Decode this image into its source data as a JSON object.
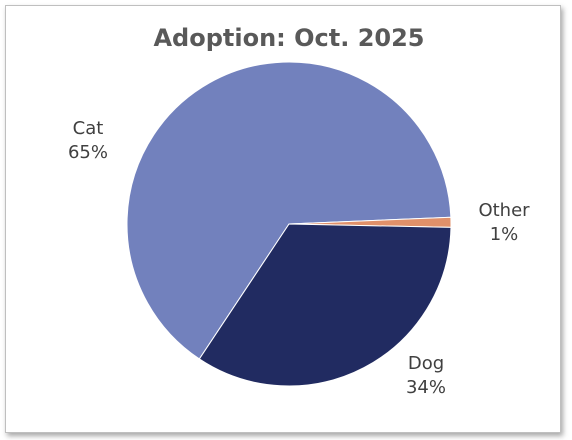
{
  "chart_data": {
    "type": "pie",
    "title": "Adoption: Oct. 2025",
    "slices": [
      {
        "label": "Cat",
        "value": 65,
        "percent_label": "65%",
        "color": "#7281bd"
      },
      {
        "label": "Other",
        "value": 1,
        "percent_label": "1%",
        "color": "#e0906a"
      },
      {
        "label": "Dog",
        "value": 34,
        "percent_label": "34%",
        "color": "#212b61"
      }
    ],
    "legend": "none",
    "data_labels": "outside"
  }
}
